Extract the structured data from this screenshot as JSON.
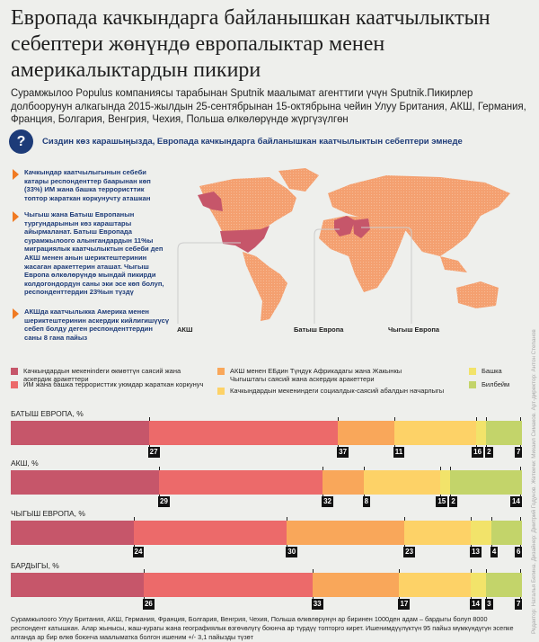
{
  "title": "Европада качкындарга байланышкан каатчылыктын себептери жөнүндө европалыктар менен америкалыктардын пикири",
  "subtitle": "Сурамжылоо Populus компаниясы тарабынан Sputnik маалымат агенттиги үчүн Sputnik.Пикирлер долбоорунун алкагында 2015-жылдын 25-сентябрынан 15-октябрына чейин Улуу Британия, АКШ, Германия, Франция, Болгария, Венгрия, Чехия, Польша өлкөлөрүндө жүргүзүлгөн",
  "question_icon": "?",
  "question": "Сиздин көз карашыңызда, Европада качкындарга байланышкан каатчылыктын себептери эмнеде",
  "bullets": [
    "Качкындар каатчылыгынын себеби катары респонденттер баарынан көп (33%) ИМ жана башка террористтик топтор жараткан коркунучту аташкан",
    "Чыгыш жана Батыш Европанын тургундарынын көз караштары айырмаланат. Батыш Европада сурамжылоого алынгандардын 11%ы миграциялык каатчылыктын себеби деп АКШ менен анын шериктештеринин жасаган аракеттерин аташат. Чыгыш Европа өлкөлөрүндө мындай пикирди колдогондордун саны эки эсе көп болуп, респонденттердин 23%ын түздү",
    "АКШда каатчылыкка Америка менен шериктештеринин аскердик кийлигишүүсү себеп болду деген респонденттердин саны 8 гана пайыз"
  ],
  "map_labels": [
    "АКШ",
    "Батыш Европа",
    "Чыгыш Европа"
  ],
  "colors": {
    "land": "#f4a070",
    "highlight": "#c6566a",
    "navy": "#1d3b78",
    "accent": "#f07a22"
  },
  "chart_data": {
    "type": "bar",
    "stacked": true,
    "unit": "%",
    "legend": [
      {
        "label": "Качкындардын мекенindеги өкмөттүн саясий жана аскердик аракеттери",
        "color": "#c6566a"
      },
      {
        "label": "ИМ жана башка террористтик уюмдар жараткан коркунуч",
        "color": "#ec6a6a"
      },
      {
        "label": "АКШ менен ЕБдин Түндүк Африкадагы жана Жакынкы Чыгыштагы саясий жана аскердик аракеттери",
        "color": "#f9a75a"
      },
      {
        "label": "Качкындардын мекениндеги социалдык-саясий абалдын начарлыгы",
        "color": "#fdd267"
      },
      {
        "label": "Башка",
        "color": "#f2e36a"
      },
      {
        "label": "Билбейм",
        "color": "#c3d46a"
      }
    ],
    "series": [
      {
        "name": "БАТЫШ ЕВРОПА, %",
        "values": [
          27,
          37,
          11,
          16,
          2,
          7
        ]
      },
      {
        "name": "АКШ, %",
        "values": [
          29,
          32,
          8,
          15,
          2,
          14
        ]
      },
      {
        "name": "ЧЫГЫШ ЕВРОПА, %",
        "values": [
          24,
          30,
          23,
          13,
          4,
          6
        ]
      },
      {
        "name": "БАРДЫГЫ, %",
        "values": [
          26,
          33,
          17,
          14,
          3,
          7
        ]
      }
    ]
  },
  "footer": "Сурамжылоого Улуу Британия, АКШ, Германия, Франция, Болгария, Венгрия, Чехия, Польша өлкөлөрүнүн ар биринен 1000ден адам – бардыгы болуп 8000 респондент катышкан. Алар жынысы, жаш-курагы жана географиялык өзгөчөлүгү боюнча ар түрдүү топторго кирет. Ишенимдүүлүктүн 95 пайыз мүмкүндүгүн эсепке алганда ар бир өлкө боюнча маалыматка болгон ишеним +/- 3,1 пайызды түзөт",
  "credits": "Редактор: Наталья Бегина. Дизайнер: Дмитрий Годунов. Жетекчи: Михаил Симаков. Арт-директор: Антон Степанов"
}
